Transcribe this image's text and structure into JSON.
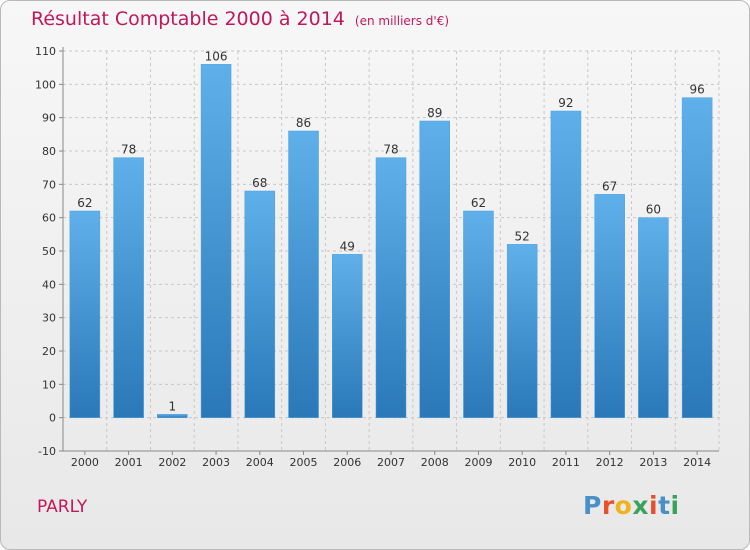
{
  "header": {
    "title": "Résultat Comptable 2000 à 2014",
    "subtitle": "(en milliers d'€)"
  },
  "footer": {
    "commune": "PARLY",
    "logo_letters": [
      "P",
      "r",
      "o",
      "x",
      "i",
      "t",
      "i"
    ],
    "logo_colors": [
      "#4a90c8",
      "#e8502b",
      "#f0b21e",
      "#3aa35b",
      "#e8502b",
      "#4a90c8",
      "#3aa35b"
    ]
  },
  "colors": {
    "bar_top": "#5fb0ea",
    "bar_bottom": "#2a78b8",
    "grid": "#c8c8c8",
    "title": "#c2185b"
  },
  "chart_data": {
    "type": "bar",
    "title": "Résultat Comptable 2000 à 2014",
    "subtitle": "(en milliers d'€)",
    "categories": [
      "2000",
      "2001",
      "2002",
      "2003",
      "2004",
      "2005",
      "2006",
      "2007",
      "2008",
      "2009",
      "2010",
      "2011",
      "2012",
      "2013",
      "2014"
    ],
    "values": [
      62,
      78,
      1,
      106,
      68,
      86,
      49,
      78,
      89,
      62,
      52,
      92,
      67,
      60,
      96
    ],
    "ylim": [
      -10,
      110
    ],
    "yticks": [
      -10,
      0,
      10,
      20,
      30,
      40,
      50,
      60,
      70,
      80,
      90,
      100,
      110
    ],
    "xlabel": "",
    "ylabel": "",
    "grid": true
  }
}
